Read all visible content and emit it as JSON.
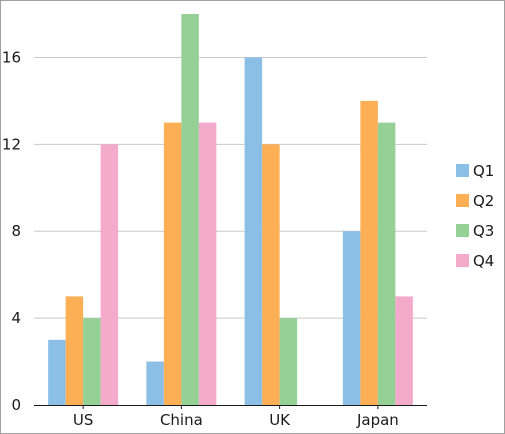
{
  "chart_data": {
    "type": "bar",
    "title": "",
    "xlabel": "",
    "ylabel": "",
    "categories": [
      "US",
      "China",
      "UK",
      "Japan"
    ],
    "ylim": [
      0,
      18
    ],
    "yticks": [
      0,
      4,
      8,
      12,
      16
    ],
    "grid": true,
    "legend_position": "right",
    "series": [
      {
        "name": "Q1",
        "color": "#8CBFE6",
        "values": [
          3,
          2,
          16,
          8
        ]
      },
      {
        "name": "Q2",
        "color": "#FDAF56",
        "values": [
          5,
          13,
          12,
          14
        ]
      },
      {
        "name": "Q3",
        "color": "#95D097",
        "values": [
          4,
          18,
          4,
          13
        ]
      },
      {
        "name": "Q4",
        "color": "#F4AACB",
        "values": [
          12,
          13,
          0,
          5
        ]
      }
    ]
  }
}
